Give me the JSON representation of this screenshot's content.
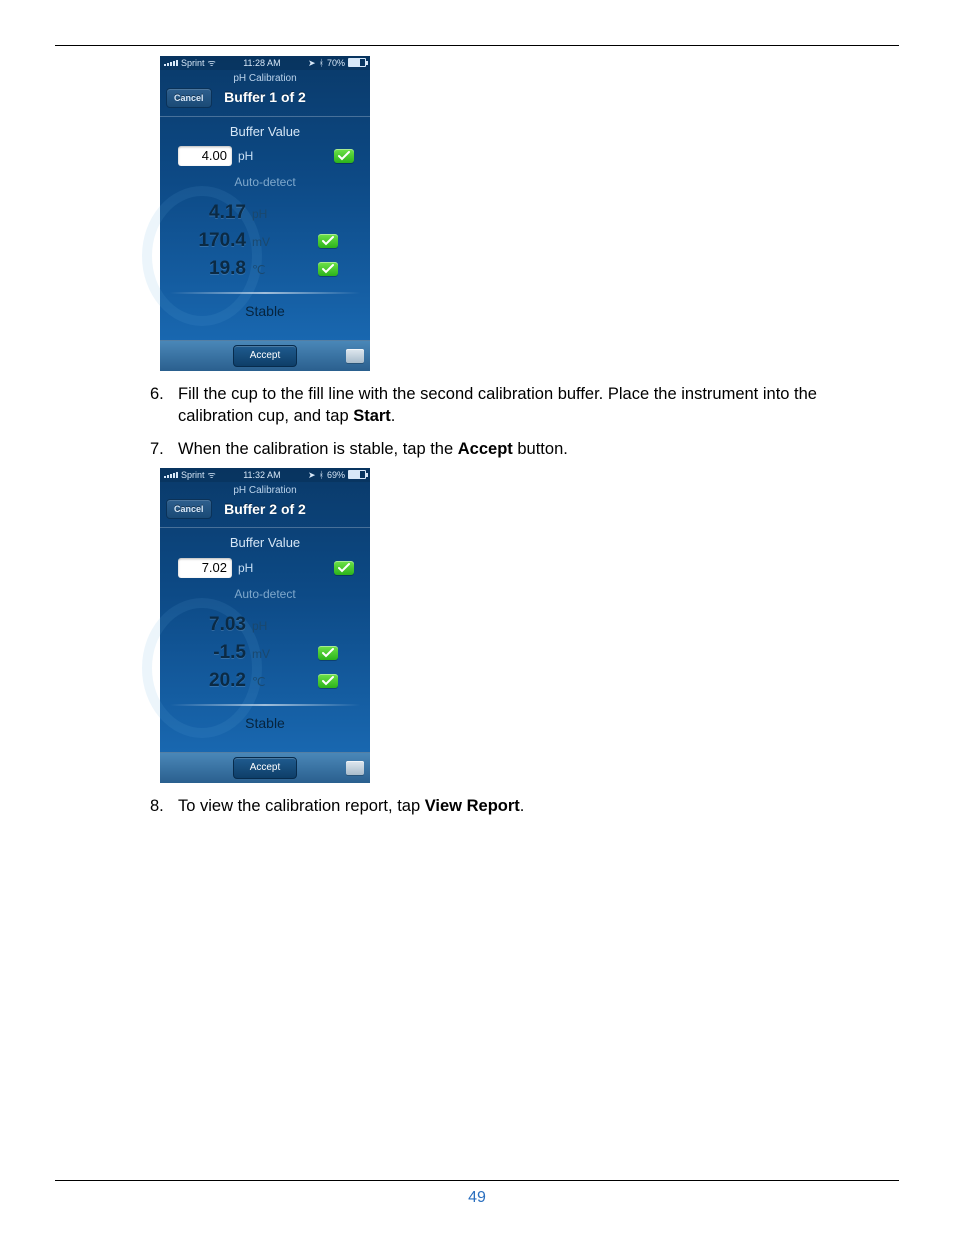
{
  "page_number": "49",
  "colors": {
    "link": "#2a6fbf",
    "rule": "#000000",
    "check_green_top": "#6fe24a",
    "check_green_bot": "#2bb31a",
    "phone_bg_top": "#0a3a6a",
    "phone_bg_mid": "#0d4a86",
    "phone_bg_bot": "#1b6db8"
  },
  "steps": [
    {
      "num": "6.",
      "text_a": "Fill the cup to the fill line with the second calibration buffer. Place the instrument into the calibration cup, and tap ",
      "bold": "Start",
      "text_b": "."
    },
    {
      "num": "7.",
      "text_a": "When the calibration is stable, tap the ",
      "bold": "Accept",
      "text_b": " button."
    },
    {
      "num": "8.",
      "text_a": "To view the calibration report, tap ",
      "bold": "View Report",
      "text_b": "."
    }
  ],
  "screens": [
    {
      "status": {
        "carrier": "Sprint",
        "time": "11:28 AM",
        "battery_pct": "70%",
        "battery_fill_pct": 70
      },
      "header": {
        "sub": "pH Calibration",
        "title": "Buffer 1 of 2",
        "cancel": "Cancel"
      },
      "buffer": {
        "label": "Buffer Value",
        "value": "4.00",
        "unit": "pH",
        "check": true
      },
      "autodetect": "Auto-detect",
      "readings": [
        {
          "value": "4.17",
          "unit": "pH",
          "check": false
        },
        {
          "value": "170.4",
          "unit": "mV",
          "check": true
        },
        {
          "value": "19.8",
          "unit": "℃",
          "check": true
        }
      ],
      "stable": "Stable",
      "accept": "Accept"
    },
    {
      "status": {
        "carrier": "Sprint",
        "time": "11:32 AM",
        "battery_pct": "69%",
        "battery_fill_pct": 69
      },
      "header": {
        "sub": "pH Calibration",
        "title": "Buffer 2 of 2",
        "cancel": "Cancel"
      },
      "buffer": {
        "label": "Buffer Value",
        "value": "7.02",
        "unit": "pH",
        "check": true
      },
      "autodetect": "Auto-detect",
      "readings": [
        {
          "value": "7.03",
          "unit": "pH",
          "check": false
        },
        {
          "value": "-1.5",
          "unit": "mV",
          "check": true
        },
        {
          "value": "20.2",
          "unit": "℃",
          "check": true
        }
      ],
      "stable": "Stable",
      "accept": "Accept"
    }
  ]
}
